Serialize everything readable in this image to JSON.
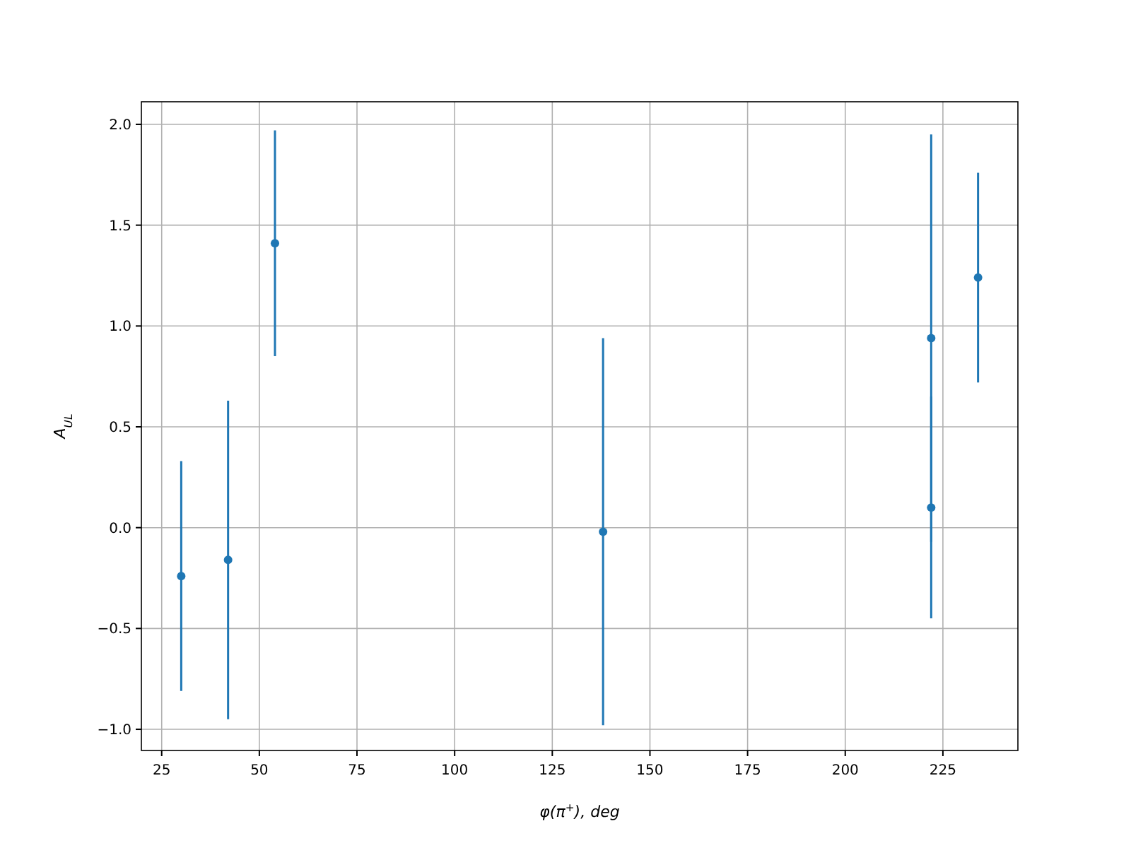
{
  "chart_data": {
    "type": "scatter",
    "xlabel": "φ(π$^{+}$), deg",
    "ylabel": "A$_{UL}$",
    "x": [
      30,
      42,
      54,
      138,
      222,
      222,
      234
    ],
    "values": [
      -0.24,
      -0.16,
      1.41,
      -0.02,
      0.94,
      0.1,
      1.24
    ],
    "errors": [
      0.57,
      0.79,
      0.56,
      0.96,
      1.01,
      0.55,
      0.52
    ],
    "color": "#1f77b4",
    "marker": "circle",
    "grid": true,
    "xlim": [
      19.8,
      244.2
    ],
    "ylim": [
      -1.105,
      2.112
    ],
    "xticks": [
      25,
      50,
      75,
      100,
      125,
      150,
      175,
      200,
      225
    ],
    "yticks": [
      {
        "value": -1,
        "label": "−1.0"
      },
      {
        "value": -0.5,
        "label": "−0.5"
      },
      {
        "value": 0,
        "label": "0.0"
      },
      {
        "value": 0.5,
        "label": "0.5"
      },
      {
        "value": 1,
        "label": "1.0"
      },
      {
        "value": 1.5,
        "label": "1.5"
      },
      {
        "value": 2,
        "label": "2.0"
      }
    ]
  }
}
